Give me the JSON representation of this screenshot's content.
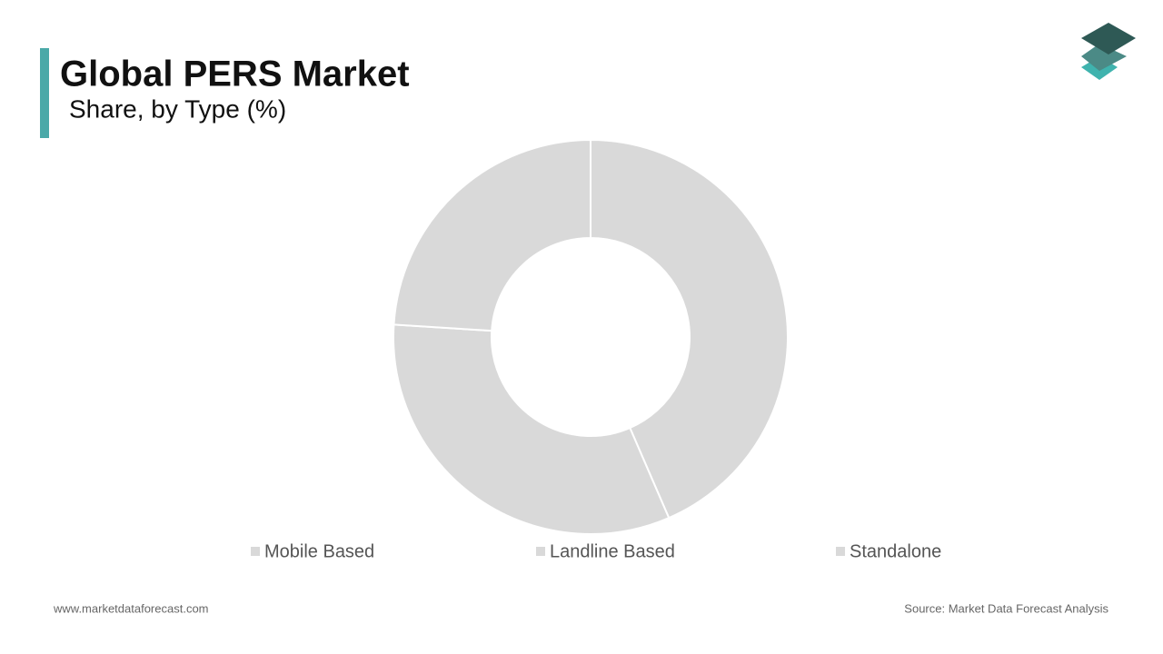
{
  "chart_data": {
    "type": "donut",
    "title": "Global PERS Market",
    "subtitle": "Share, by Type (%)",
    "categories": [
      "Mobile Based",
      "Landline Based",
      "Standalone"
    ],
    "values": [
      43.5,
      32.5,
      24
    ],
    "colors": [
      "#d9d9d9",
      "#d9d9d9",
      "#d9d9d9"
    ]
  },
  "footer": {
    "website": "www.marketdataforecast.com",
    "source": "Source: Market Data Forecast Analysis"
  }
}
